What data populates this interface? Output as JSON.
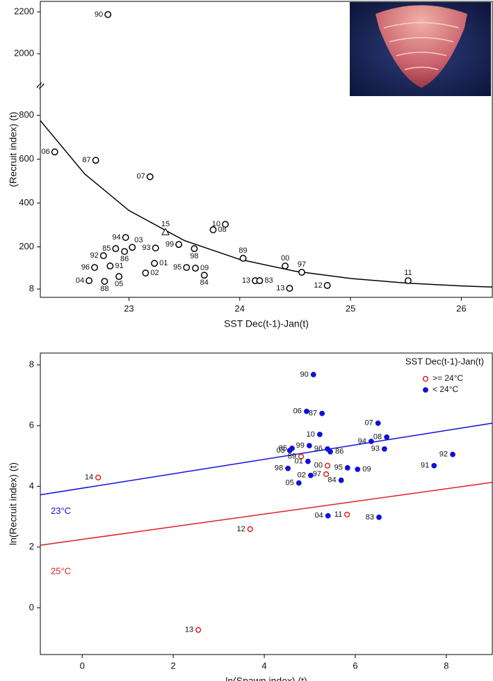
{
  "chart_data": [
    {
      "type": "scatter",
      "x_label": "SST Dec(t-1)-Jan(t)",
      "y_label": "(Recruit index) (t)",
      "xlim": [
        22.2,
        26.28
      ],
      "xticks": [
        23,
        24,
        25,
        26
      ],
      "ylim": [
        -30,
        2250
      ],
      "y_break": [
        935,
        1847
      ],
      "yticks": [
        8,
        200,
        400,
        600,
        800,
        2000,
        2200
      ],
      "point_labels": [
        "90",
        "06",
        "87",
        "07",
        "15",
        "10",
        "08",
        "94",
        "03",
        "85",
        "86",
        "93",
        "92",
        "99",
        "98",
        "89",
        "00",
        "97",
        "11",
        "96",
        "91",
        "01",
        "95",
        "09",
        "84",
        "02",
        "04",
        "05",
        "88",
        "13",
        "83",
        "13",
        "12"
      ],
      "x": [
        22.81,
        22.33,
        22.7,
        23.19,
        23.33,
        23.87,
        23.76,
        22.97,
        23.03,
        22.88,
        22.96,
        23.24,
        22.77,
        23.45,
        23.59,
        24.03,
        24.41,
        24.56,
        25.52,
        22.69,
        22.83,
        23.23,
        23.52,
        23.6,
        23.68,
        23.15,
        22.64,
        22.91,
        22.78,
        24.14,
        24.18,
        24.45,
        24.79
      ],
      "values": [
        2187,
        633,
        595,
        520,
        268,
        303,
        278,
        243,
        198,
        192,
        179,
        195,
        160,
        211,
        192,
        148,
        113,
        84,
        46,
        106,
        113,
        125,
        106,
        103,
        71,
        81,
        46,
        65,
        43,
        46,
        46,
        11,
        24
      ],
      "markers": [
        "circle",
        "circle",
        "circle",
        "circle",
        "triangle",
        "circle",
        "circle",
        "circle",
        "circle",
        "circle",
        "circle",
        "circle",
        "circle",
        "circle",
        "circle",
        "circle",
        "circle",
        "circle",
        "circle",
        "circle",
        "circle",
        "circle",
        "circle",
        "circle",
        "circle",
        "circle",
        "circle",
        "circle",
        "circle",
        "circle",
        "circle",
        "circle",
        "circle"
      ],
      "color": "#000000",
      "fit": {
        "x": [
          22.2,
          22.6,
          23.0,
          23.5,
          24.0,
          24.5,
          25.0,
          25.5,
          26.0,
          26.28
        ],
        "y": [
          776,
          533,
          366,
          229,
          143,
          89,
          56,
          35,
          22,
          17
        ]
      }
    },
    {
      "type": "scatter",
      "x_label": "ln(Spawn index) (t)",
      "y_label": "ln(Recruit index) (t)",
      "xlim": [
        -0.92,
        9.01
      ],
      "xticks": [
        0,
        2,
        4,
        6,
        8
      ],
      "ylim": [
        -1.54,
        8.39
      ],
      "yticks": [
        0,
        2,
        4,
        6,
        8
      ],
      "legend_title": "SST Dec(t-1)-Jan(t)",
      "legend": "top-right",
      "series": [
        {
          "name": ">= 24°C",
          "color": "#e02020",
          "filled": false,
          "point_labels": [
            "14",
            "12",
            "13",
            "89",
            "00",
            "97",
            "11"
          ],
          "x": [
            0.35,
            3.69,
            2.55,
            4.81,
            5.39,
            5.36,
            5.82
          ],
          "values": [
            4.29,
            2.59,
            -0.73,
            4.98,
            4.68,
            4.4,
            3.07
          ]
        },
        {
          "name": "< 24°C",
          "color": "#1010d8",
          "filled": true,
          "point_labels": [
            "90",
            "06",
            "87",
            "07",
            "10",
            "94",
            "08",
            "85",
            "03",
            "99",
            "96",
            "86",
            "01",
            "95",
            "09",
            "98",
            "02",
            "84",
            "05",
            "93",
            "92",
            "91",
            "04",
            "83"
          ],
          "x": [
            5.08,
            4.93,
            5.27,
            6.5,
            5.22,
            6.35,
            6.69,
            4.61,
            4.56,
            4.99,
            5.39,
            5.45,
            4.96,
            5.83,
            6.05,
            4.52,
            5.02,
            5.69,
            4.76,
            6.64,
            8.14,
            7.73,
            5.4,
            6.52
          ],
          "values": [
            7.68,
            6.47,
            6.4,
            6.08,
            5.71,
            5.48,
            5.62,
            5.25,
            5.18,
            5.34,
            5.23,
            5.14,
            4.82,
            4.61,
            4.56,
            4.59,
            4.36,
            4.2,
            4.11,
            5.23,
            5.05,
            4.68,
            3.03,
            2.98
          ]
        }
      ],
      "lines": [
        {
          "label": "23°C",
          "color": "#1010d8",
          "x": [
            -0.92,
            9.01
          ],
          "values": [
            3.72,
            6.08
          ]
        },
        {
          "label": "25°C",
          "color": "#e02020",
          "x": [
            -0.92,
            9.01
          ],
          "values": [
            2.06,
            4.13
          ]
        }
      ]
    }
  ]
}
